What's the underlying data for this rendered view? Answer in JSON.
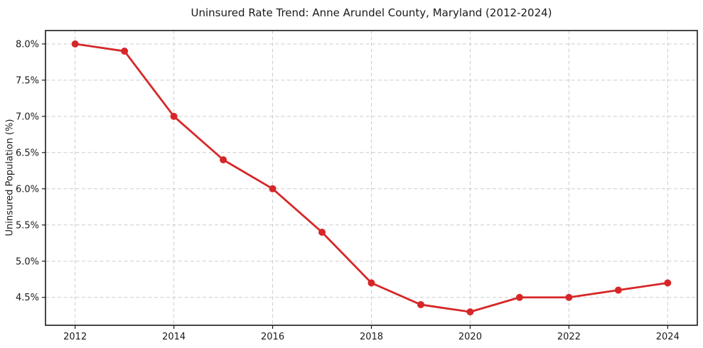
{
  "chart_data": {
    "type": "line",
    "title": "Uninsured Rate Trend: Anne Arundel County, Maryland (2012-2024)",
    "xlabel": "",
    "ylabel": "Uninsured Population (%)",
    "x": [
      2012,
      2013,
      2014,
      2015,
      2016,
      2017,
      2018,
      2019,
      2020,
      2021,
      2022,
      2023,
      2024
    ],
    "values": [
      8.0,
      7.9,
      7.0,
      6.4,
      6.0,
      5.4,
      4.7,
      4.4,
      4.3,
      4.5,
      4.5,
      4.6,
      4.7
    ],
    "xlim": [
      2011.4,
      2024.6
    ],
    "ylim": [
      4.115,
      8.185
    ],
    "x_ticks": [
      2012,
      2014,
      2016,
      2018,
      2020,
      2022,
      2024
    ],
    "x_tick_labels": [
      "2012",
      "2014",
      "2016",
      "2018",
      "2020",
      "2022",
      "2024"
    ],
    "y_ticks": [
      4.5,
      5.0,
      5.5,
      6.0,
      6.5,
      7.0,
      7.5,
      8.0
    ],
    "y_tick_labels": [
      "4.5%",
      "5.0%",
      "5.5%",
      "6.0%",
      "6.5%",
      "7.0%",
      "7.5%",
      "8.0%"
    ],
    "grid": "dashed",
    "legend_position": "none",
    "line_color": "#d62728",
    "marker": "circle",
    "grid_color": "#cccccc",
    "axis_color": "#1a1a1a",
    "text_color": "#1a1a1a"
  }
}
